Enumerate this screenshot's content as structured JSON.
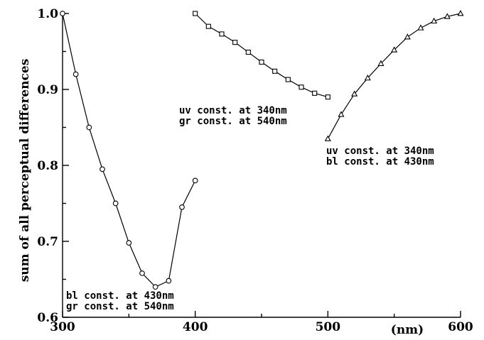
{
  "chart_data": {
    "type": "line",
    "ylabel": "sum of all perceptual differences",
    "xlabel": "(nm)",
    "xlim": [
      300,
      600
    ],
    "ylim": [
      0.6,
      1.0
    ],
    "xticks": [
      300,
      400,
      500,
      600
    ],
    "yticks": [
      0.6,
      0.7,
      0.8,
      0.9,
      1.0
    ],
    "ytick_labels": [
      "0.6",
      "0.7",
      "0.8",
      "0.9",
      "1.0"
    ],
    "grid": false,
    "series": [
      {
        "marker": "circle",
        "x": [
          300,
          310,
          320,
          330,
          340,
          350,
          360,
          370,
          380,
          390,
          400
        ],
        "y": [
          1.0,
          0.92,
          0.85,
          0.795,
          0.75,
          0.698,
          0.658,
          0.64,
          0.648,
          0.745,
          0.78
        ],
        "annotation": [
          "bl const. at 430nm",
          "gr const. at 540nm"
        ]
      },
      {
        "marker": "square",
        "x": [
          400,
          410,
          420,
          430,
          440,
          450,
          460,
          470,
          480,
          490,
          500
        ],
        "y": [
          1.0,
          0.983,
          0.973,
          0.962,
          0.949,
          0.936,
          0.924,
          0.913,
          0.903,
          0.895,
          0.89
        ],
        "annotation": [
          "uv const. at 340nm",
          "gr const. at 540nm"
        ]
      },
      {
        "marker": "triangle",
        "x": [
          500,
          510,
          520,
          530,
          540,
          550,
          560,
          570,
          580,
          590,
          600
        ],
        "y": [
          0.835,
          0.867,
          0.894,
          0.915,
          0.934,
          0.952,
          0.969,
          0.981,
          0.99,
          0.996,
          1.0
        ],
        "annotation": [
          "uv const. at 340nm",
          "bl const. at 430nm"
        ]
      }
    ]
  }
}
